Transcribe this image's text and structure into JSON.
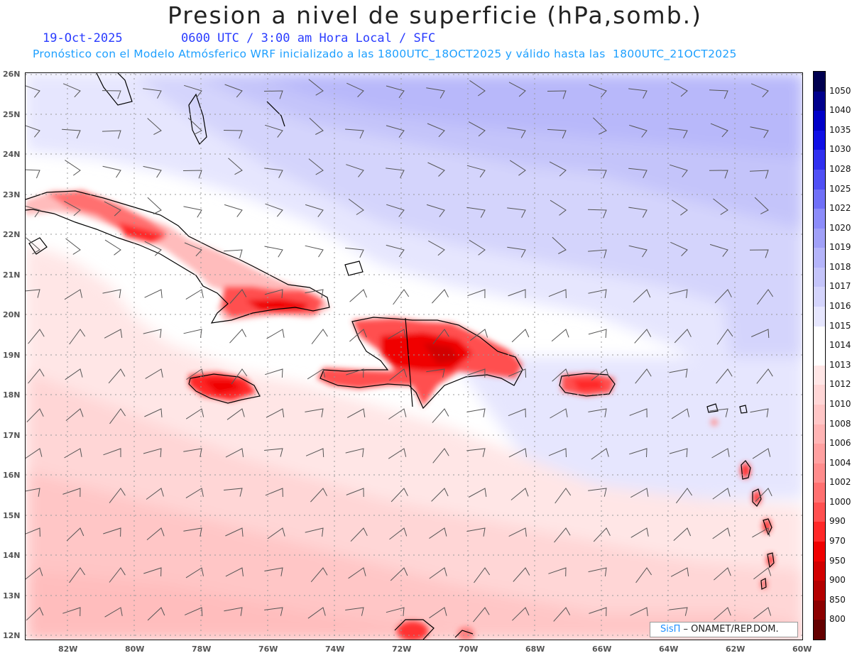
{
  "title": "Presion a nivel de superficie (hPa,somb.)",
  "date": "19-Oct-2025",
  "time_line": "0600 UTC / 3:00 am Hora Local / SFC",
  "forecast_line": "Pronóstico con el Modelo Atmósferico WRF inicializado a las 1800UTC_18OCT2025 y válido hasta las  1800UTC_21OCT2025",
  "credit": {
    "brand": "SisΠ",
    "text": " – ONAMET/REP.DOM."
  },
  "lat_labels": [
    "26N",
    "25N",
    "24N",
    "23N",
    "22N",
    "21N",
    "20N",
    "19N",
    "18N",
    "17N",
    "16N",
    "15N",
    "14N",
    "13N",
    "12N"
  ],
  "lon_labels": [
    "82W",
    "80W",
    "78W",
    "76W",
    "74W",
    "72W",
    "70W",
    "68W",
    "66W",
    "64W",
    "62W",
    "60W"
  ],
  "colorbar": {
    "levels": [
      "1050",
      "1040",
      "1035",
      "1030",
      "1028",
      "1025",
      "1022",
      "1020",
      "1019",
      "1018",
      "1017",
      "1016",
      "1015",
      "1014",
      "1013",
      "1012",
      "1010",
      "1008",
      "1006",
      "1004",
      "1002",
      "1000",
      "990",
      "970",
      "950",
      "900",
      "850",
      "800"
    ],
    "colors": [
      "#000050",
      "#00008c",
      "#0000c8",
      "#1010e6",
      "#3030f0",
      "#5050f5",
      "#7070f8",
      "#8c8cfa",
      "#a0a0f8",
      "#b4b4fa",
      "#c4c4fa",
      "#d4d4fc",
      "#e6e6fe",
      "#ffffff",
      "#ffffff",
      "#ffe6e6",
      "#ffd6d6",
      "#ffc6c6",
      "#ffb4b4",
      "#ffa0a0",
      "#ff8c8c",
      "#ff7070",
      "#ff5050",
      "#ff2828",
      "#f00000",
      "#d20000",
      "#b40000",
      "#8c0000",
      "#640000"
    ]
  },
  "map": {
    "lon_range": [
      -83.2,
      -60
    ],
    "lat_range": [
      12,
      26
    ]
  }
}
